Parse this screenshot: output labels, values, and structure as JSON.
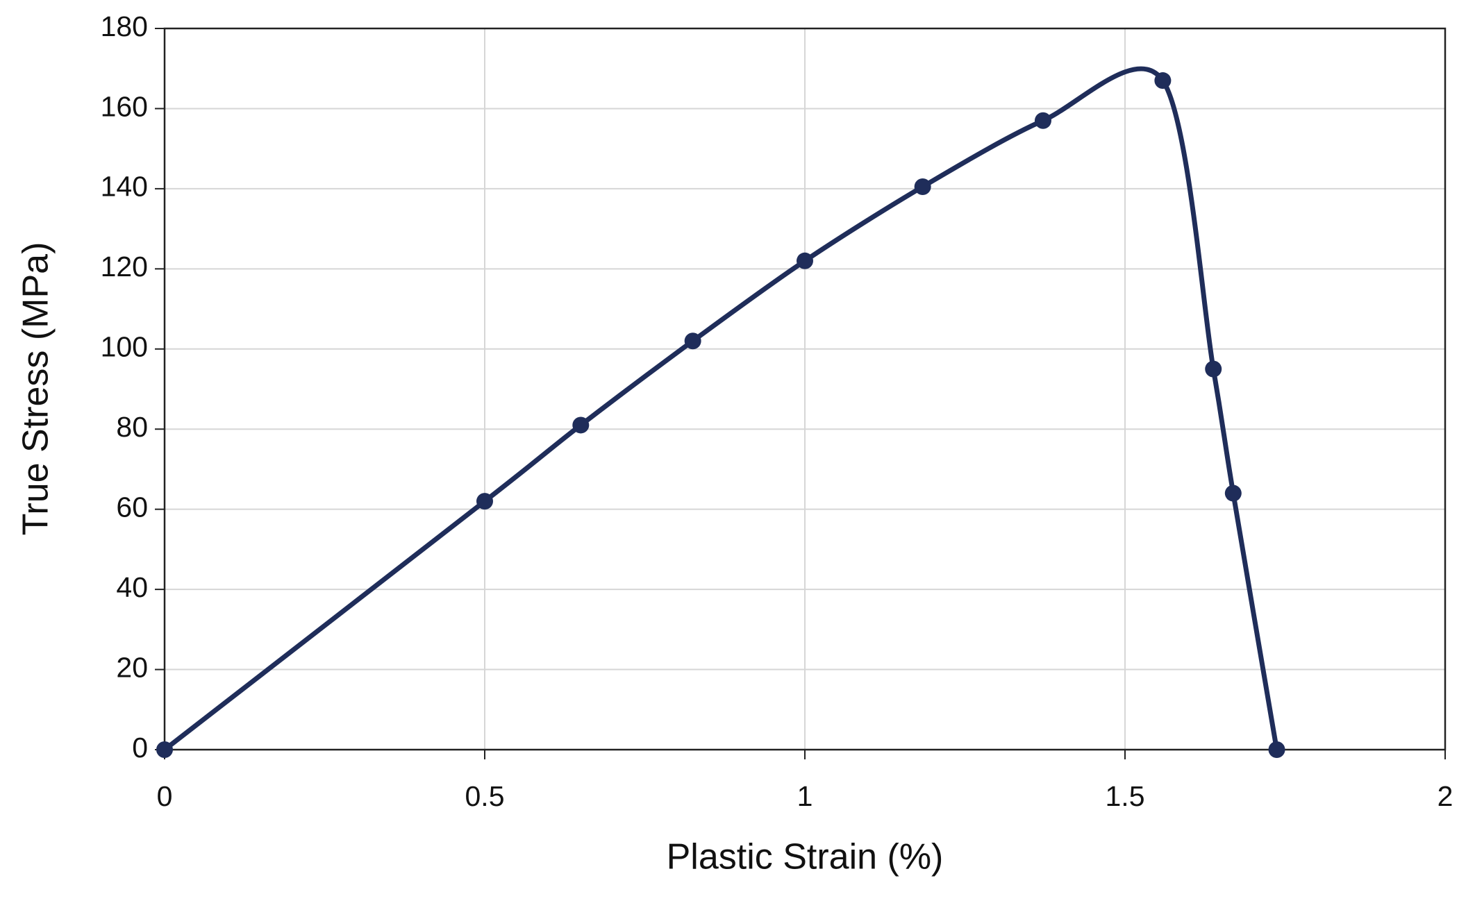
{
  "chart_data": {
    "type": "line",
    "x_label": "Plastic Strain (%)",
    "y_label": "True Stress (MPa)",
    "series": [
      {
        "name": "True Stress",
        "color": "#1f2d5a",
        "x": [
          0,
          0.5,
          0.65,
          0.825,
          1.0,
          1.184,
          1.372,
          1.559,
          1.638,
          1.669,
          1.737
        ],
        "values": [
          0,
          62,
          81,
          102,
          122,
          140.5,
          157,
          167,
          95,
          64,
          0
        ]
      }
    ],
    "xlim": [
      0,
      2
    ],
    "xticks": [
      0,
      0.5,
      1,
      1.5,
      2
    ],
    "ylim": [
      0,
      180
    ],
    "yticks": [
      0,
      20,
      40,
      60,
      80,
      100,
      120,
      140,
      160,
      180
    ],
    "grid": true
  }
}
